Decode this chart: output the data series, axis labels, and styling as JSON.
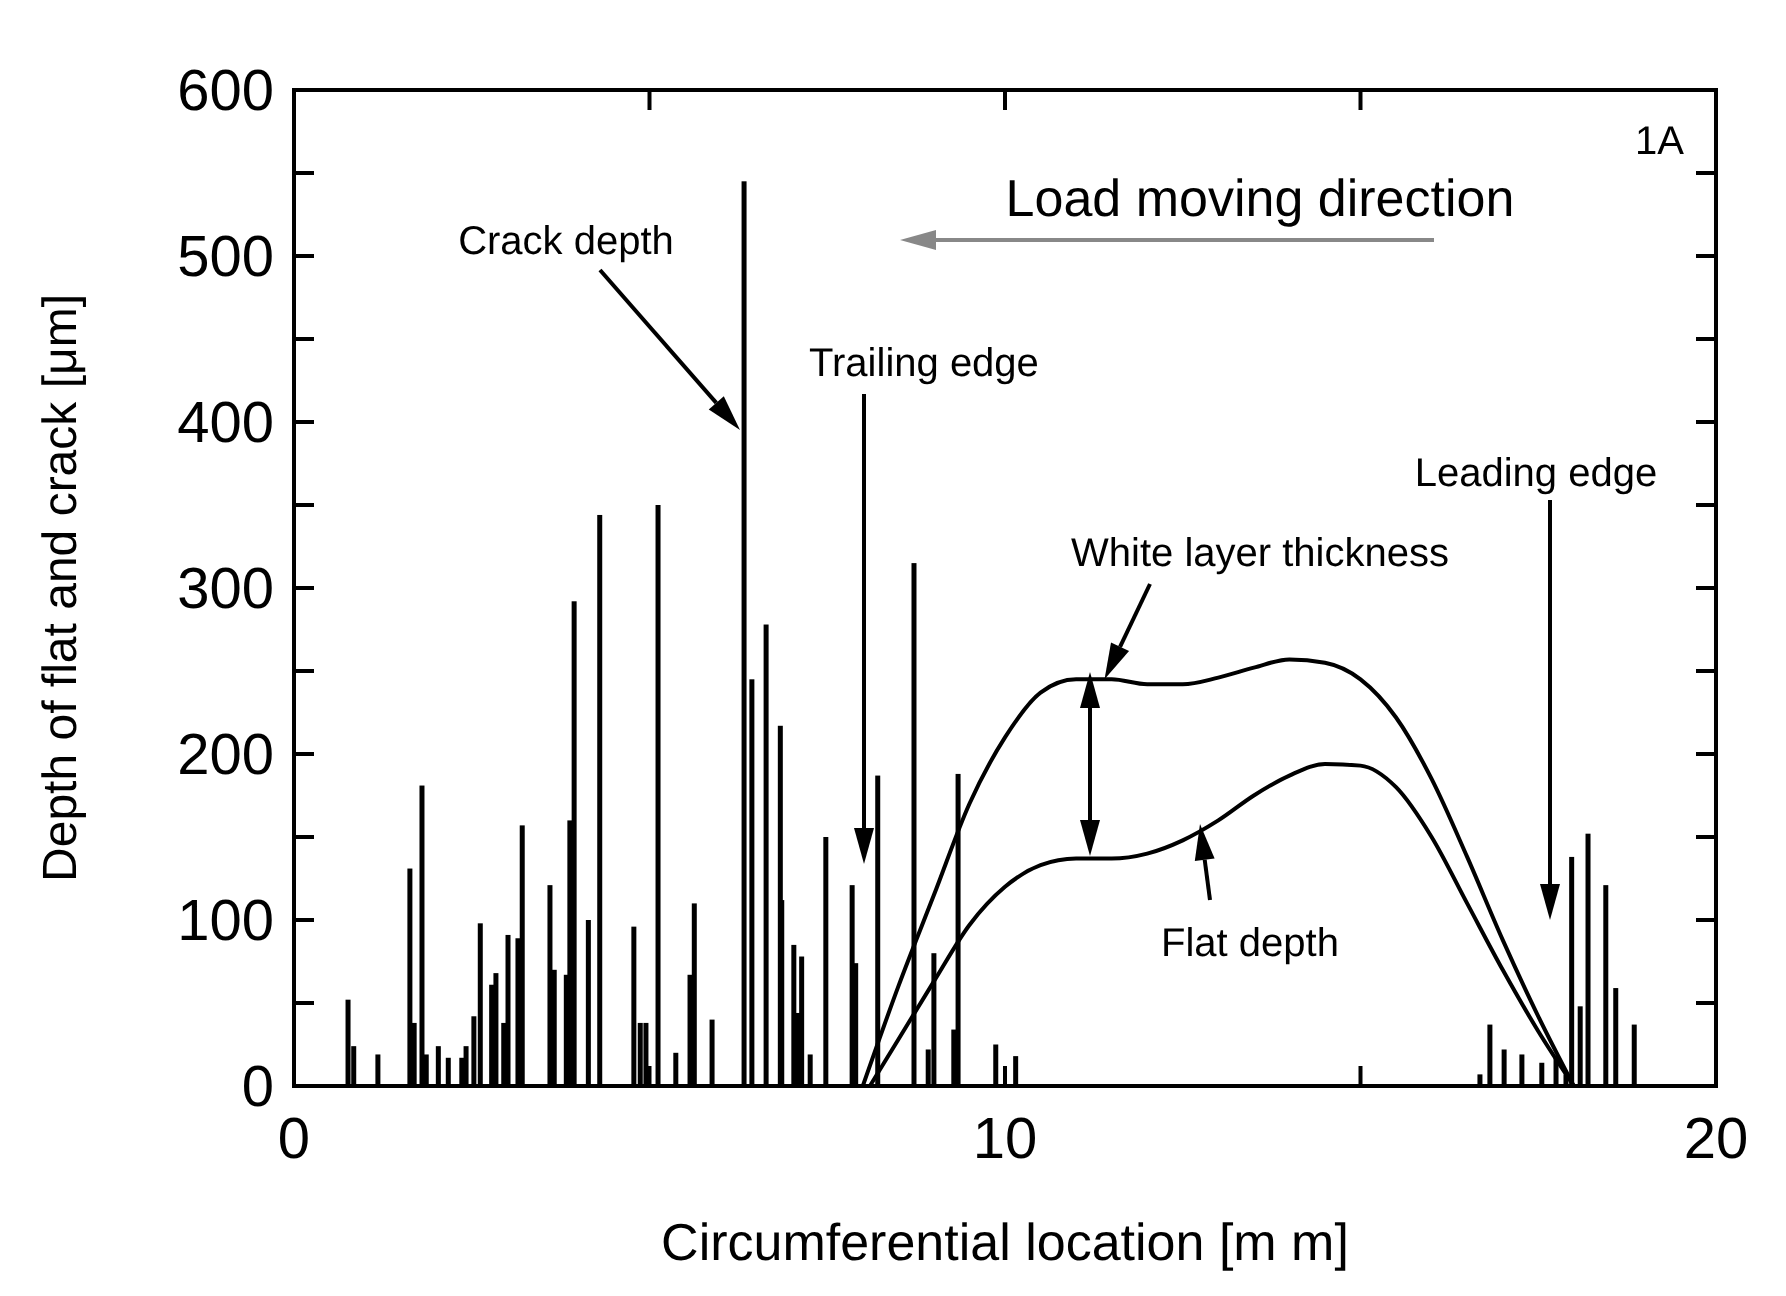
{
  "chart_data": {
    "type": "bar",
    "xlabel": "Circumferential location [m m]",
    "ylabel": "Depth of flat and crack [μm]",
    "xlim": [
      0,
      20
    ],
    "ylim": [
      0,
      600
    ],
    "xticks": [
      0,
      {
        "value": 5,
        "label": null
      },
      10,
      {
        "value": 15,
        "label": null
      },
      20
    ],
    "yticks": [
      0,
      {
        "value": 50,
        "label": null
      },
      100,
      {
        "value": 150,
        "label": null
      },
      200,
      {
        "value": 250,
        "label": null
      },
      300,
      {
        "value": 350,
        "label": null
      },
      400,
      {
        "value": 450,
        "label": null
      },
      500,
      {
        "value": 550,
        "label": null
      },
      600
    ],
    "grid": false,
    "series": [
      {
        "color": "#000000",
        "x": [
          0.76,
          0.84,
          1.18,
          1.63,
          1.69,
          1.8,
          1.86,
          2.03,
          2.17,
          2.36,
          2.42,
          2.53,
          2.62,
          2.78,
          2.84,
          2.95,
          3.01,
          3.15,
          3.21,
          3.6,
          3.66,
          3.83,
          3.88,
          3.94,
          4.14,
          4.3,
          4.78,
          4.87,
          4.95,
          5.12,
          5.37,
          5.57,
          5.63,
          5.88,
          6.33,
          6.44,
          6.64,
          6.84,
          6.86,
          7.03,
          7.09,
          7.14,
          7.26,
          7.48,
          7.85,
          7.9,
          8.21,
          8.72,
          8.92,
          9.0,
          9.28,
          9.34,
          9.87,
          10.15,
          16.68,
          16.82,
          17.02,
          17.27,
          17.55,
          17.75,
          17.89,
          17.97,
          18.09,
          18.2,
          18.45,
          18.59,
          18.85
        ],
        "values": [
          52,
          24,
          19,
          131,
          38,
          181,
          19,
          24,
          17,
          17,
          24,
          42,
          98,
          61,
          68,
          38,
          91,
          89,
          157,
          121,
          70,
          67,
          160,
          292,
          100,
          344,
          96,
          38,
          38,
          350,
          20,
          67,
          110,
          40,
          545,
          245,
          278,
          217,
          112,
          85,
          44,
          78,
          19,
          150,
          121,
          74,
          187,
          315,
          22,
          80,
          34,
          188,
          25,
          18,
          7,
          37,
          22,
          19,
          14,
          18,
          7,
          138,
          48,
          152,
          121,
          59,
          37
        ]
      },
      {
        "type": "line",
        "color": "#000000",
        "x": [
          8.0,
          8.5,
          9,
          9.5,
          10,
          10.5,
          11,
          11.5,
          12,
          12.5,
          13,
          13.5,
          14,
          14.5,
          15,
          15.5,
          16,
          16.5,
          17,
          17.5,
          18
        ],
        "values": [
          0,
          60,
          115,
          170,
          210,
          237,
          245,
          245,
          242,
          242,
          246,
          252,
          257,
          255,
          245,
          222,
          185,
          138,
          88,
          42,
          0
        ]
      },
      {
        "type": "line",
        "color": "#000000",
        "x": [
          8.1,
          8.5,
          9,
          9.5,
          10,
          10.5,
          11,
          11.5,
          12,
          12.5,
          13,
          13.5,
          14,
          14.5,
          15,
          15.5,
          16,
          16.5,
          17,
          17.5,
          18
        ],
        "values": [
          0,
          28,
          63,
          97,
          120,
          133,
          137,
          137,
          140,
          148,
          160,
          175,
          187,
          194,
          193,
          180,
          150,
          110,
          70,
          33,
          0
        ]
      }
    ],
    "annotations": [
      "Crack depth",
      "Trailing edge",
      {
        "text": "White layer thickness",
        "x": 11.4,
        "y": 245
      },
      "Flat depth",
      "Leading edge",
      "Load moving direction",
      "1A"
    ]
  }
}
